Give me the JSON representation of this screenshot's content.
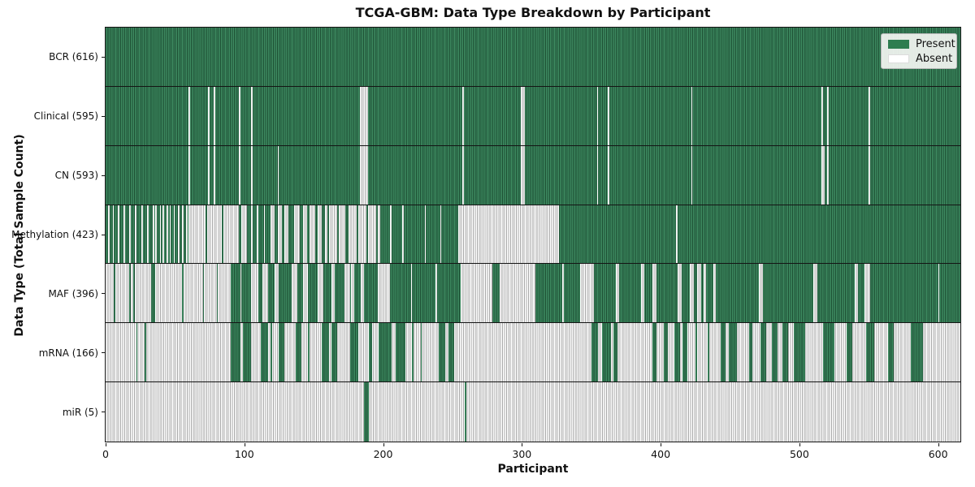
{
  "title": "TCGA-GBM: Data Type Breakdown by Participant",
  "axes": {
    "xlabel": "Participant",
    "ylabel": "Data Type (Total Sample Count)"
  },
  "legend": {
    "present_label": "Present",
    "absent_label": "Absent"
  },
  "colors": {
    "present_fill": "#2e7d4f",
    "present_light": "#3d8a60",
    "present_edge": "#1d4f33",
    "absent_fill": "#ffffff",
    "absent_edge": "#a8a8a8",
    "axis": "#141414",
    "legend_bg": "#f6f6f4",
    "legend_border": "#b9b9b9"
  },
  "chart_data": {
    "type": "heatmap",
    "title": "TCGA-GBM: Data Type Breakdown by Participant",
    "xlabel": "Participant",
    "ylabel": "Data Type (Total Sample Count)",
    "x_ticks": [
      0,
      100,
      200,
      300,
      400,
      500,
      600
    ],
    "xlim": [
      0,
      616
    ],
    "n_participants": 616,
    "legend_position": "upper right",
    "value_encoding": {
      "present": "green",
      "absent": "white"
    },
    "rows": [
      {
        "label": "BCR (616)",
        "data_type": "BCR",
        "present_count": 616,
        "mode": "absent",
        "ranges": []
      },
      {
        "label": "Clinical (595)",
        "data_type": "Clinical",
        "present_count": 595,
        "mode": "absent",
        "ranges": [
          [
            60,
            60
          ],
          [
            74,
            74
          ],
          [
            78,
            78
          ],
          [
            96,
            96
          ],
          [
            105,
            105
          ],
          [
            183,
            188
          ],
          [
            257,
            257
          ],
          [
            299,
            301
          ],
          [
            354,
            354
          ],
          [
            362,
            362
          ],
          [
            422,
            422
          ],
          [
            516,
            516
          ],
          [
            520,
            520
          ],
          [
            550,
            550
          ]
        ]
      },
      {
        "label": "CN (593)",
        "data_type": "CN",
        "present_count": 593,
        "mode": "absent",
        "ranges": [
          [
            60,
            60
          ],
          [
            74,
            74
          ],
          [
            78,
            78
          ],
          [
            96,
            96
          ],
          [
            105,
            105
          ],
          [
            124,
            124
          ],
          [
            183,
            188
          ],
          [
            257,
            257
          ],
          [
            299,
            301
          ],
          [
            354,
            354
          ],
          [
            362,
            362
          ],
          [
            422,
            422
          ],
          [
            516,
            517
          ],
          [
            520,
            520
          ],
          [
            550,
            550
          ]
        ]
      },
      {
        "label": "Methylation (423)",
        "data_type": "Methylation",
        "present_count": 423,
        "mode": "absent",
        "ranges": [
          [
            2,
            2
          ],
          [
            5,
            5
          ],
          [
            9,
            9
          ],
          [
            13,
            13
          ],
          [
            17,
            17
          ],
          [
            21,
            21
          ],
          [
            26,
            26
          ],
          [
            30,
            30
          ],
          [
            34,
            34
          ],
          [
            36,
            36
          ],
          [
            39,
            39
          ],
          [
            41,
            41
          ],
          [
            44,
            44
          ],
          [
            46,
            46
          ],
          [
            49,
            49
          ],
          [
            52,
            52
          ],
          [
            55,
            55
          ],
          [
            58,
            58
          ],
          [
            60,
            71
          ],
          [
            73,
            83
          ],
          [
            85,
            95
          ],
          [
            98,
            101
          ],
          [
            105,
            105
          ],
          [
            109,
            109
          ],
          [
            114,
            114
          ],
          [
            119,
            121
          ],
          [
            124,
            126
          ],
          [
            129,
            131
          ],
          [
            136,
            139
          ],
          [
            142,
            144
          ],
          [
            147,
            150
          ],
          [
            153,
            155
          ],
          [
            158,
            159
          ],
          [
            161,
            166
          ],
          [
            168,
            172
          ],
          [
            175,
            180
          ],
          [
            182,
            187
          ],
          [
            189,
            194
          ],
          [
            196,
            197
          ],
          [
            205,
            205
          ],
          [
            214,
            214
          ],
          [
            230,
            230
          ],
          [
            241,
            241
          ],
          [
            254,
            326
          ],
          [
            411,
            411
          ]
        ]
      },
      {
        "label": "MAF (396)",
        "data_type": "MAF",
        "present_count": 396,
        "mode": "absent",
        "ranges": [
          [
            0,
            5
          ],
          [
            7,
            16
          ],
          [
            18,
            19
          ],
          [
            21,
            32
          ],
          [
            36,
            54
          ],
          [
            56,
            69
          ],
          [
            71,
            79
          ],
          [
            81,
            89
          ],
          [
            97,
            97
          ],
          [
            105,
            109
          ],
          [
            113,
            116
          ],
          [
            122,
            124
          ],
          [
            134,
            137
          ],
          [
            142,
            145
          ],
          [
            153,
            156
          ],
          [
            163,
            164
          ],
          [
            172,
            175
          ],
          [
            177,
            178
          ],
          [
            184,
            185
          ],
          [
            196,
            204
          ],
          [
            220,
            220
          ],
          [
            238,
            238
          ],
          [
            256,
            278
          ],
          [
            284,
            309
          ],
          [
            329,
            329
          ],
          [
            342,
            351
          ],
          [
            368,
            369
          ],
          [
            386,
            387
          ],
          [
            394,
            396
          ],
          [
            412,
            414
          ],
          [
            421,
            423
          ],
          [
            426,
            428
          ],
          [
            431,
            432
          ],
          [
            438,
            439
          ],
          [
            471,
            473
          ],
          [
            510,
            512
          ],
          [
            540,
            541
          ],
          [
            547,
            550
          ],
          [
            600,
            600
          ]
        ]
      },
      {
        "label": "mRNA (166)",
        "data_type": "mRNA",
        "present_count": 166,
        "mode": "present",
        "ranges": [
          [
            22,
            22
          ],
          [
            28,
            28
          ],
          [
            90,
            96
          ],
          [
            99,
            104
          ],
          [
            112,
            116
          ],
          [
            119,
            119
          ],
          [
            125,
            128
          ],
          [
            137,
            140
          ],
          [
            146,
            146
          ],
          [
            156,
            160
          ],
          [
            163,
            166
          ],
          [
            176,
            181
          ],
          [
            190,
            191
          ],
          [
            197,
            205
          ],
          [
            209,
            215
          ],
          [
            221,
            221
          ],
          [
            227,
            227
          ],
          [
            240,
            244
          ],
          [
            247,
            250
          ],
          [
            350,
            354
          ],
          [
            358,
            363
          ],
          [
            366,
            368
          ],
          [
            394,
            396
          ],
          [
            402,
            404
          ],
          [
            410,
            413
          ],
          [
            416,
            418
          ],
          [
            425,
            425
          ],
          [
            434,
            434
          ],
          [
            443,
            446
          ],
          [
            449,
            454
          ],
          [
            464,
            465
          ],
          [
            472,
            475
          ],
          [
            480,
            483
          ],
          [
            488,
            491
          ],
          [
            496,
            503
          ],
          [
            517,
            524
          ],
          [
            534,
            537
          ],
          [
            548,
            553
          ],
          [
            564,
            567
          ],
          [
            580,
            588
          ]
        ]
      },
      {
        "label": "miR (5)",
        "data_type": "miR",
        "present_count": 5,
        "mode": "present",
        "ranges": [
          [
            186,
            189
          ],
          [
            259,
            259
          ]
        ]
      }
    ]
  }
}
